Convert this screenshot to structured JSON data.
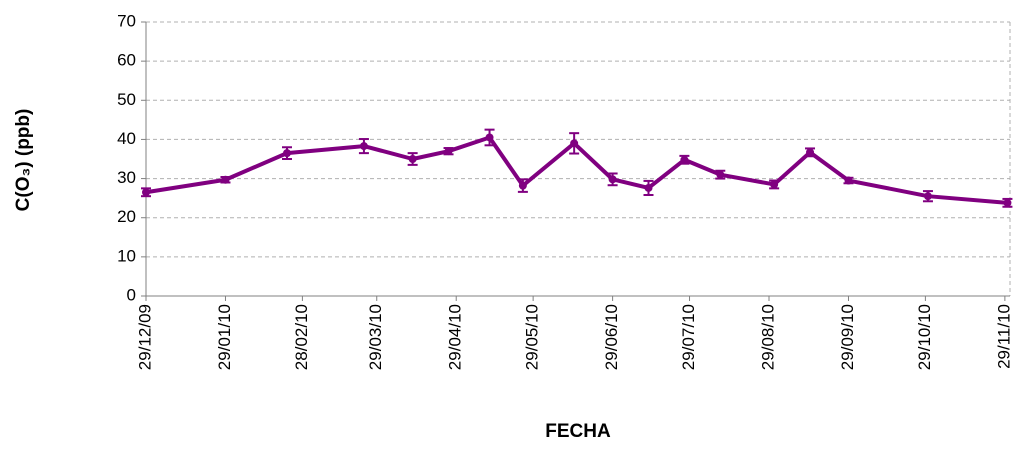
{
  "chart_data": {
    "type": "line",
    "x_label": "FECHA",
    "y_label": "C(O₃) (ppb)",
    "x": [
      "2009-12-29",
      "2010-01-29",
      "2010-02-22",
      "2010-03-24",
      "2010-04-12",
      "2010-04-26",
      "2010-05-12",
      "2010-05-25",
      "2010-06-14",
      "2010-06-29",
      "2010-07-13",
      "2010-07-27",
      "2010-08-10",
      "2010-08-31",
      "2010-09-14",
      "2010-09-29",
      "2010-10-30",
      "2010-11-30"
    ],
    "series": [
      {
        "color": "#800080",
        "values": [
          26.5,
          29.7,
          36.5,
          38.3,
          35,
          37,
          40.5,
          28.2,
          39,
          29.8,
          27.6,
          34.8,
          31,
          28.5,
          36.7,
          29.5,
          25.5,
          23.8
        ],
        "errors": [
          1,
          0.7,
          1.5,
          1.8,
          1.5,
          0.8,
          2,
          1.6,
          2.6,
          1.5,
          1.8,
          1,
          1,
          1,
          1,
          0.7,
          1.3,
          1
        ]
      }
    ],
    "xlim": [
      "2009-12-29",
      "2010-12-01"
    ],
    "xticks": [
      {
        "value": "2009-12-29",
        "label": "29/12/09"
      },
      {
        "value": "2010-01-29",
        "label": "29/01/10"
      },
      {
        "value": "2010-02-28",
        "label": "28/02/10"
      },
      {
        "value": "2010-03-29",
        "label": "29/03/10"
      },
      {
        "value": "2010-04-29",
        "label": "29/04/10"
      },
      {
        "value": "2010-05-29",
        "label": "29/05/10"
      },
      {
        "value": "2010-06-29",
        "label": "29/06/10"
      },
      {
        "value": "2010-07-29",
        "label": "29/07/10"
      },
      {
        "value": "2010-08-29",
        "label": "29/08/10"
      },
      {
        "value": "2010-09-29",
        "label": "29/09/10"
      },
      {
        "value": "2010-10-29",
        "label": "29/10/10"
      },
      {
        "value": "2010-11-29",
        "label": "29/11/10"
      }
    ],
    "ylim": [
      0,
      70
    ],
    "yticks": [
      0,
      10,
      20,
      30,
      40,
      50,
      60,
      70
    ],
    "grid": true
  }
}
